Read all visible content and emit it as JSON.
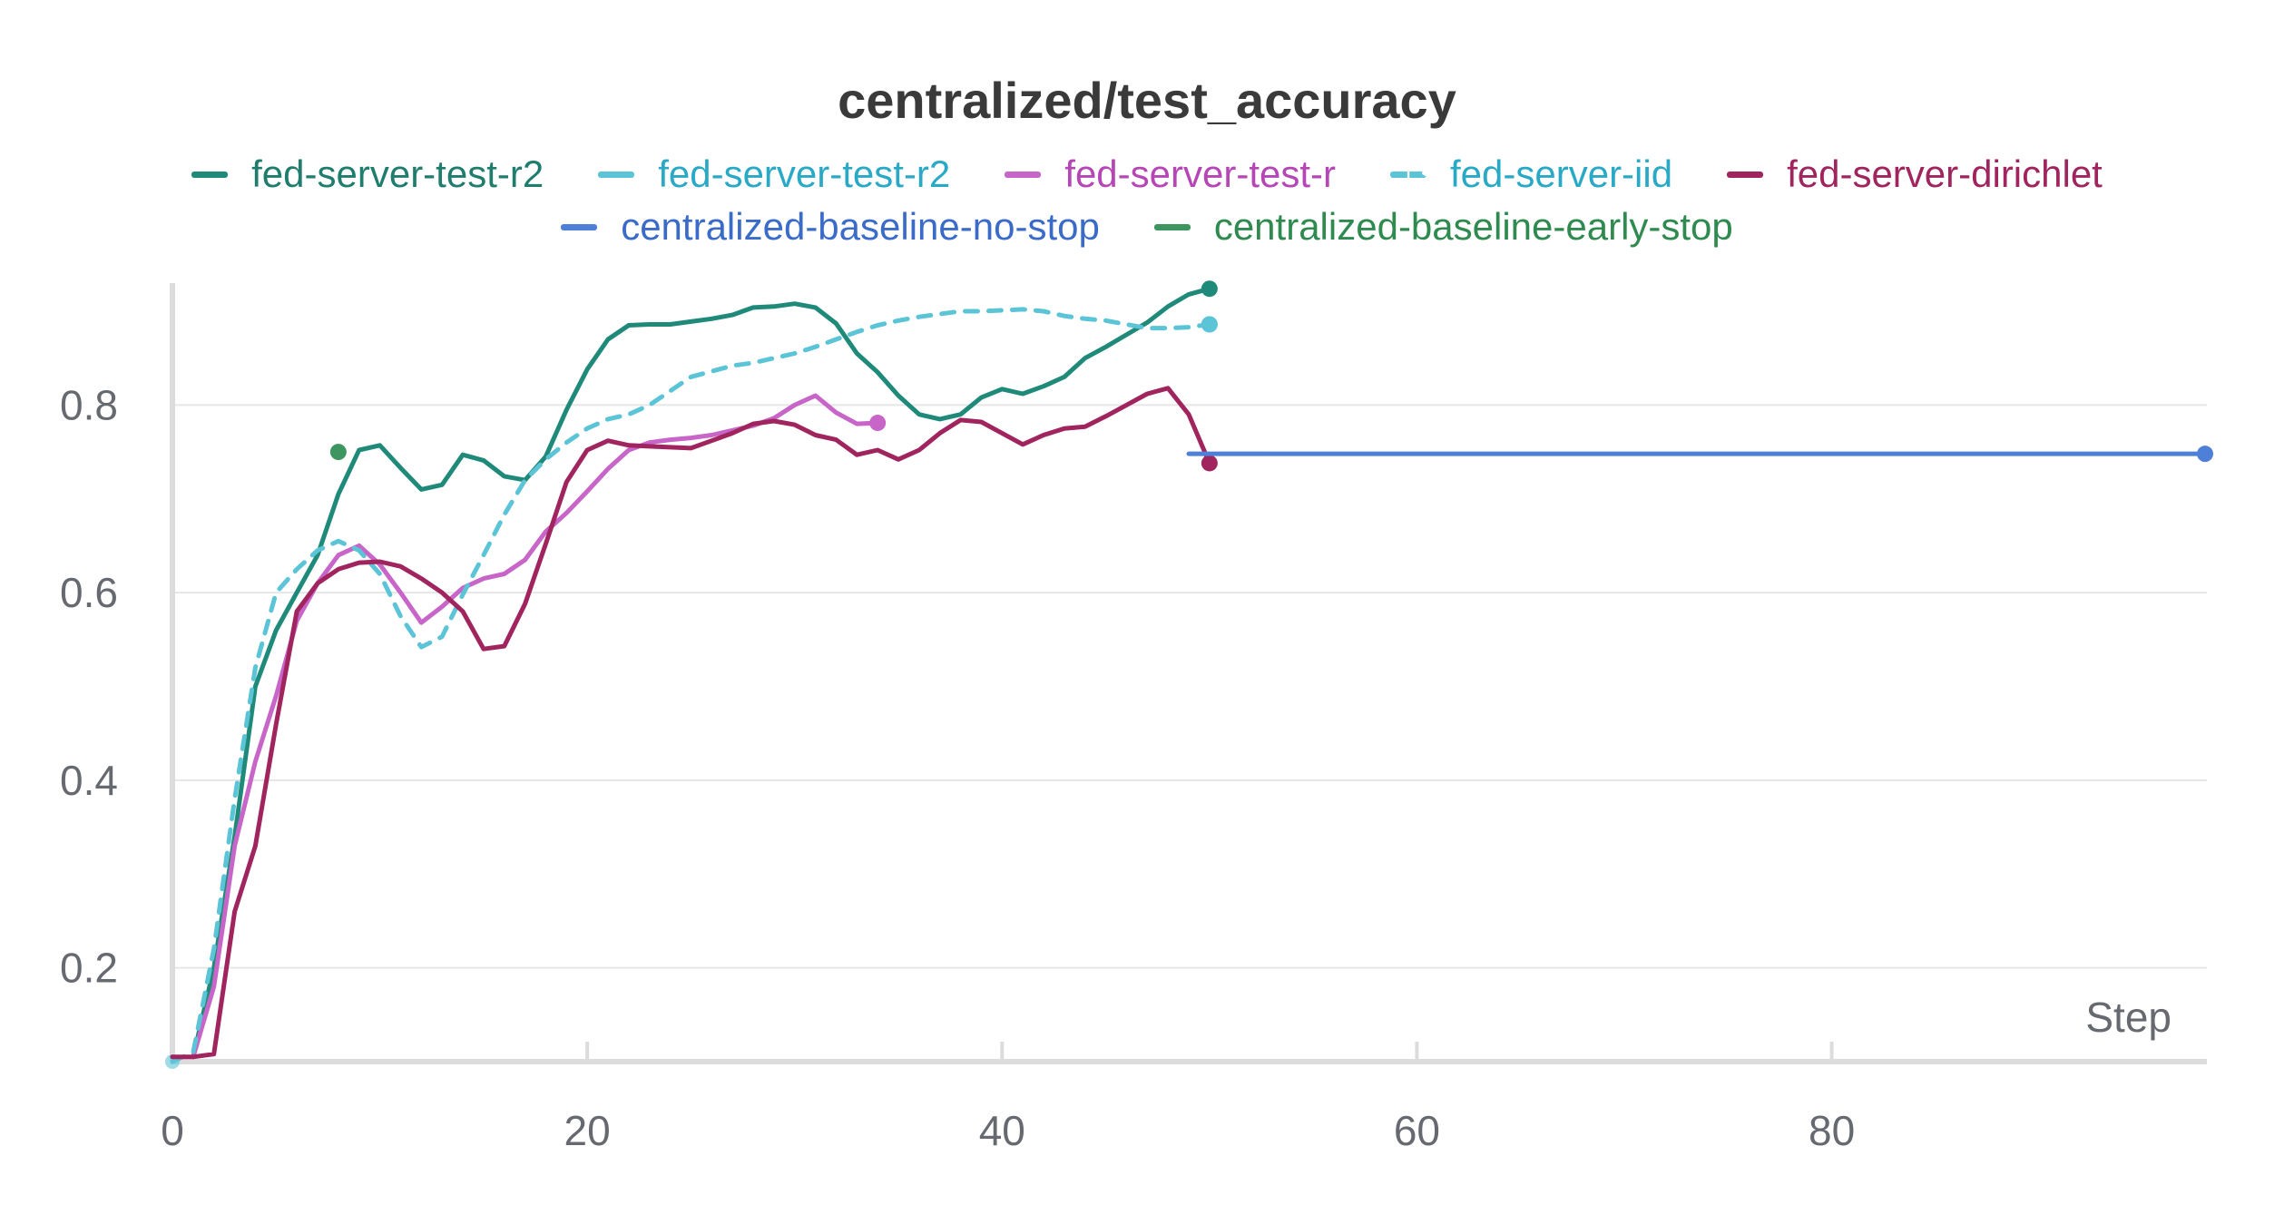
{
  "chart_data": {
    "type": "line",
    "title": "centralized/test_accuracy",
    "xlabel": "Step",
    "ylabel": "",
    "xlim": [
      0,
      98
    ],
    "ylim": [
      0.1,
      0.93
    ],
    "x_ticks": [
      0,
      20,
      40,
      60,
      80
    ],
    "y_ticks": [
      0.2,
      0.4,
      0.6,
      0.8
    ],
    "x_tick_labels": [
      "0",
      "20",
      "40",
      "60",
      "80"
    ],
    "y_tick_labels": [
      "0.2",
      "0.4",
      "0.6",
      "0.8"
    ],
    "grid": true,
    "legend_position": "top-center",
    "series": [
      {
        "name": "fed-server-test-r2",
        "color": "#1f8a7a",
        "dash": false,
        "end_marker": true,
        "label_color": "#1f7d6e",
        "x": [
          1,
          2,
          3,
          4,
          5,
          6,
          7,
          8,
          9,
          10,
          11,
          12,
          13,
          14,
          15,
          16,
          17,
          18,
          19,
          20,
          21,
          22,
          23,
          24,
          25,
          26,
          27,
          28,
          29,
          30,
          31,
          32,
          33,
          34,
          35,
          36,
          37,
          38,
          39,
          40,
          41,
          42,
          43,
          44,
          45,
          46,
          47,
          48,
          49,
          50
        ],
        "y": [
          0.105,
          0.2,
          0.34,
          0.5,
          0.56,
          0.6,
          0.64,
          0.705,
          0.752,
          0.757,
          0.733,
          0.71,
          0.715,
          0.747,
          0.741,
          0.724,
          0.72,
          0.745,
          0.795,
          0.838,
          0.87,
          0.885,
          0.886,
          0.886,
          0.889,
          0.892,
          0.896,
          0.904,
          0.905,
          0.908,
          0.904,
          0.887,
          0.855,
          0.835,
          0.81,
          0.79,
          0.785,
          0.79,
          0.808,
          0.817,
          0.812,
          0.82,
          0.83,
          0.85,
          0.862,
          0.875,
          0.888,
          0.905,
          0.918,
          0.924
        ]
      },
      {
        "name": "fed-server-test-r2",
        "color": "#5bc4d6",
        "dash": false,
        "end_marker": true,
        "label_color": "#29a9c6",
        "x": [
          50
        ],
        "y": [
          0.886
        ]
      },
      {
        "name": "fed-server-test-r",
        "color": "#c865c8",
        "dash": false,
        "end_marker": true,
        "label_color": "#b646b6",
        "x": [
          1,
          2,
          3,
          4,
          5,
          6,
          7,
          8,
          9,
          10,
          11,
          12,
          13,
          14,
          15,
          16,
          17,
          18,
          19,
          20,
          21,
          22,
          23,
          24,
          25,
          26,
          27,
          28,
          29,
          30,
          31,
          32,
          33,
          34
        ],
        "y": [
          0.105,
          0.18,
          0.33,
          0.42,
          0.49,
          0.57,
          0.61,
          0.64,
          0.65,
          0.63,
          0.6,
          0.568,
          0.585,
          0.605,
          0.615,
          0.62,
          0.635,
          0.665,
          0.685,
          0.708,
          0.732,
          0.752,
          0.76,
          0.763,
          0.765,
          0.768,
          0.773,
          0.778,
          0.786,
          0.8,
          0.81,
          0.792,
          0.78,
          0.781
        ]
      },
      {
        "name": "fed-server-iid",
        "color": "#5bc4d6",
        "dash": true,
        "end_marker": true,
        "label_color": "#29a9c6",
        "x": [
          0,
          1,
          2,
          3,
          4,
          5,
          6,
          7,
          8,
          9,
          10,
          11,
          12,
          13,
          14,
          15,
          16,
          17,
          18,
          19,
          20,
          21,
          22,
          23,
          24,
          25,
          26,
          27,
          28,
          29,
          30,
          31,
          32,
          33,
          34,
          35,
          36,
          37,
          38,
          39,
          40,
          41,
          42,
          43,
          44,
          45,
          46,
          47,
          48,
          49,
          50
        ],
        "y": [
          0.1,
          0.11,
          0.22,
          0.38,
          0.52,
          0.6,
          0.625,
          0.645,
          0.655,
          0.645,
          0.62,
          0.575,
          0.542,
          0.553,
          0.598,
          0.64,
          0.683,
          0.72,
          0.742,
          0.76,
          0.775,
          0.785,
          0.79,
          0.8,
          0.815,
          0.83,
          0.836,
          0.842,
          0.845,
          0.85,
          0.855,
          0.862,
          0.87,
          0.878,
          0.885,
          0.89,
          0.894,
          0.897,
          0.9,
          0.9,
          0.901,
          0.902,
          0.9,
          0.895,
          0.892,
          0.89,
          0.886,
          0.882,
          0.882,
          0.883,
          0.886
        ]
      },
      {
        "name": "fed-server-dirichlet",
        "color": "#a0245e",
        "dash": false,
        "end_marker": true,
        "label_color": "#a0245e",
        "x": [
          0,
          1,
          2,
          3,
          4,
          5,
          6,
          7,
          8,
          9,
          10,
          11,
          12,
          13,
          14,
          15,
          16,
          17,
          18,
          19,
          20,
          21,
          22,
          23,
          24,
          25,
          26,
          27,
          28,
          29,
          30,
          31,
          32,
          33,
          34,
          35,
          36,
          37,
          38,
          39,
          40,
          41,
          42,
          43,
          44,
          45,
          46,
          47,
          48,
          49,
          50
        ],
        "y": [
          0.105,
          0.105,
          0.108,
          0.26,
          0.33,
          0.46,
          0.58,
          0.61,
          0.625,
          0.632,
          0.633,
          0.628,
          0.615,
          0.6,
          0.58,
          0.54,
          0.543,
          0.588,
          0.652,
          0.718,
          0.752,
          0.762,
          0.757,
          0.756,
          0.755,
          0.754,
          0.762,
          0.77,
          0.78,
          0.783,
          0.779,
          0.768,
          0.763,
          0.747,
          0.752,
          0.742,
          0.752,
          0.77,
          0.784,
          0.782,
          0.77,
          0.758,
          0.768,
          0.775,
          0.777,
          0.788,
          0.8,
          0.812,
          0.818,
          0.79,
          0.738
        ]
      },
      {
        "name": "centralized-baseline-no-stop",
        "color": "#4e80d8",
        "dash": false,
        "end_marker": true,
        "label_color": "#3a6bc9",
        "x": [
          49,
          98
        ],
        "y": [
          0.748,
          0.748
        ]
      },
      {
        "name": "centralized-baseline-early-stop",
        "color": "#3d9560",
        "dash": false,
        "end_marker": true,
        "label_color": "#2e8a4e",
        "x": [
          8
        ],
        "y": [
          0.75
        ]
      }
    ]
  }
}
